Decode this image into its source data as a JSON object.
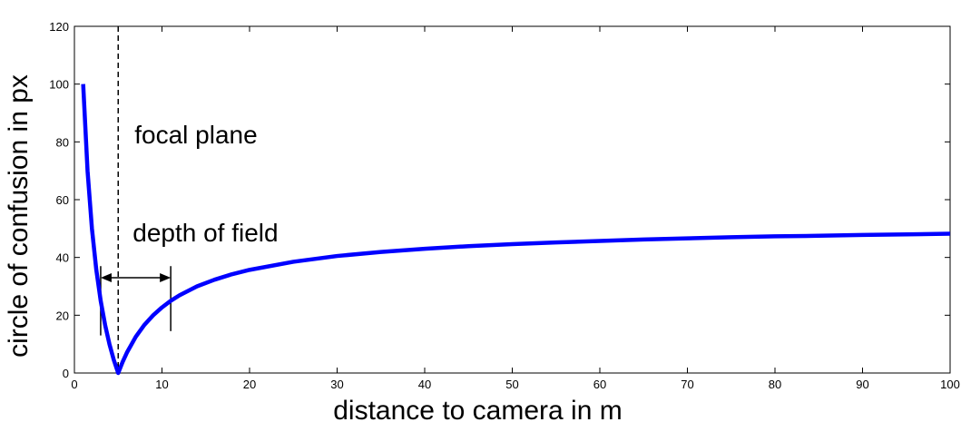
{
  "chart_data": {
    "type": "line",
    "xlabel": "distance to camera in m",
    "ylabel": "circle of confusion in px",
    "xlim": [
      0,
      100
    ],
    "ylim": [
      0,
      120
    ],
    "x_ticks": [
      0,
      10,
      20,
      30,
      40,
      50,
      60,
      70,
      80,
      90,
      100
    ],
    "y_ticks": [
      0,
      20,
      40,
      60,
      80,
      100,
      120
    ],
    "series": [
      {
        "color": "#0000ff",
        "x": [
          1,
          1.5,
          2,
          2.5,
          3,
          3.5,
          4,
          4.5,
          5,
          5.5,
          6,
          7,
          8,
          9,
          10,
          11,
          12,
          14,
          16,
          18,
          20,
          25,
          30,
          35,
          40,
          45,
          50,
          55,
          60,
          65,
          70,
          75,
          80,
          85,
          90,
          95,
          100
        ],
        "y": [
          100,
          70,
          50,
          35.7,
          25,
          16.7,
          10,
          4.5,
          0,
          3.8,
          7.1,
          12.5,
          16.7,
          20.0,
          22.7,
          25.0,
          26.9,
          30.0,
          32.3,
          34.2,
          35.7,
          38.5,
          40.5,
          41.9,
          43.0,
          43.9,
          44.6,
          45.2,
          45.7,
          46.2,
          46.6,
          47.0,
          47.3,
          47.5,
          47.8,
          48.0,
          48.2
        ]
      }
    ],
    "annotations": {
      "focal_plane": {
        "label": "focal plane",
        "x": 5
      },
      "depth_of_field": {
        "label": "depth of field",
        "x_start": 3,
        "x_end": 11
      }
    },
    "grid": false
  }
}
